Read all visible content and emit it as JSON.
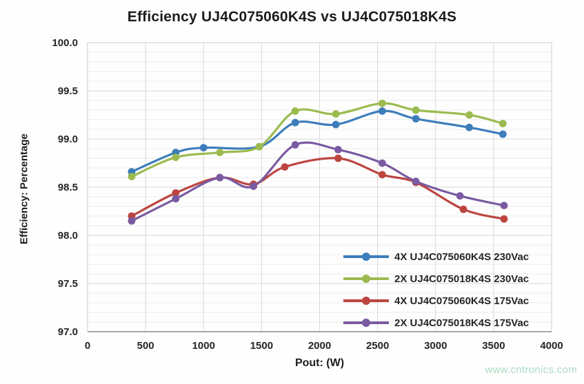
{
  "chart_data": {
    "type": "line",
    "title": "Efficiency UJ4C075060K4S vs UJ4C075018K4S",
    "xlabel": "Pout: (W)",
    "ylabel": "Efficiency: Percentage",
    "xlim": [
      0,
      4000
    ],
    "ylim": [
      97.0,
      100.0
    ],
    "x_tick_labels": [
      "0",
      "500",
      "1000",
      "1500",
      "2000",
      "2500",
      "3000",
      "3500",
      "4000"
    ],
    "y_tick_labels": [
      "100.0",
      "99.5",
      "99.0",
      "98.5",
      "98.0",
      "97.5",
      "97.0"
    ],
    "y_minor_step": 0.1,
    "grid": true,
    "line_smoothing": true,
    "legend_position": "bottom-right-inside",
    "series": [
      {
        "name": "4X UJ4C075060K4S 230Vac",
        "color": "#3c7dbb",
        "x": [
          380,
          760,
          1000,
          1480,
          1790,
          2140,
          2540,
          2830,
          3290,
          3580
        ],
        "y": [
          98.66,
          98.86,
          98.91,
          98.92,
          99.17,
          99.15,
          99.29,
          99.21,
          99.12,
          99.05
        ]
      },
      {
        "name": "2X UJ4C075018K4S 230Vac",
        "color": "#9bbb4f",
        "x": [
          380,
          760,
          1140,
          1480,
          1790,
          2140,
          2540,
          2830,
          3290,
          3580
        ],
        "y": [
          98.61,
          98.81,
          98.86,
          98.92,
          99.29,
          99.26,
          99.37,
          99.3,
          99.25,
          99.16
        ]
      },
      {
        "name": "4X UJ4C075060K4S 175Vac",
        "color": "#bc4540",
        "x": [
          380,
          760,
          1140,
          1430,
          1700,
          2160,
          2540,
          2830,
          3240,
          3590
        ],
        "y": [
          98.2,
          98.44,
          98.6,
          98.53,
          98.71,
          98.8,
          98.63,
          98.55,
          98.27,
          98.17
        ]
      },
      {
        "name": "2X UJ4C075018K4S 175Vac",
        "color": "#7a5ba1",
        "x": [
          380,
          760,
          1140,
          1430,
          1790,
          2160,
          2540,
          2830,
          3210,
          3590
        ],
        "y": [
          98.15,
          98.38,
          98.6,
          98.51,
          98.94,
          98.89,
          98.75,
          98.56,
          98.41,
          98.31
        ]
      }
    ],
    "colors": {
      "grid_major": "#d6d6d6",
      "grid_minor": "#ebebeb",
      "axis_line": "#8c8c8c",
      "plot_border": "#cccccc",
      "tick_text": "#262626"
    },
    "watermark": "www.cntronics.com"
  }
}
